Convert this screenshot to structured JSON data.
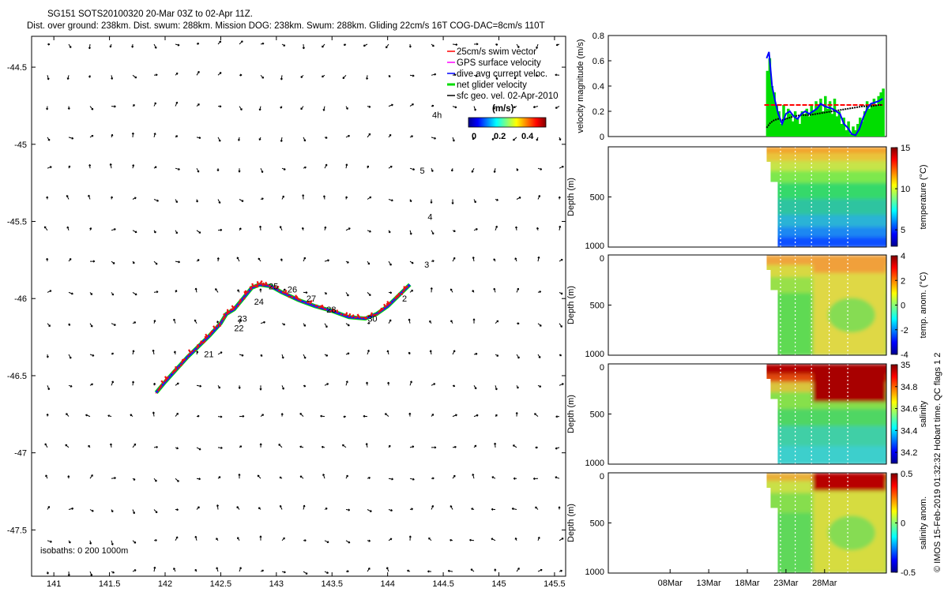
{
  "title": {
    "line1": "SG151 SOTS20100320 20-Mar 03Z to 02-Apr 11Z.",
    "line2": "Dist. over ground: 238km. Dist. swum: 288km. Mission DOG: 238km. Swum: 288km. Gliding 22cm/s 16T COG-DAC=8cm/s 110T"
  },
  "side_note": "© IMOS 15-Feb-2019 01:32:32 Hobart time. QC flags 1  2",
  "colors": {
    "swim": "#ff0000",
    "gps": "#ff00ff",
    "dac": "#0000ff",
    "net": "#00dd00",
    "geo": "#000000",
    "track": "#1a1aff",
    "track_marks": "#ee1111"
  },
  "chart_data": [
    {
      "type": "scatter",
      "name": "map",
      "xlim": [
        140.8,
        145.6
      ],
      "ylim": [
        -47.8,
        -44.3
      ],
      "xticks": [
        141,
        141.5,
        142,
        142.5,
        143,
        143.5,
        144,
        144.5,
        145,
        145.5
      ],
      "yticks": [
        -44.5,
        -45,
        -45.5,
        -46,
        -46.5,
        -47,
        -47.5
      ],
      "xtick_labels": [
        "141",
        "141.5",
        "142",
        "142.5",
        "143",
        "143.5",
        "144",
        "144.5",
        "145",
        "145.5"
      ],
      "ytick_labels": [
        "-44.5",
        "-45",
        "-45.5",
        "-46",
        "-46.5",
        "-47",
        "-47.5"
      ],
      "legend": [
        {
          "key": "swim",
          "label": "25cm/s swim vector"
        },
        {
          "key": "gps",
          "label": "GPS surface velocity"
        },
        {
          "key": "dac",
          "label": "dive avg current veloc."
        },
        {
          "key": "net",
          "label": "net glider velocity"
        },
        {
          "key": "geo",
          "label": "sfc geo. vel. 02-Apr-2010"
        }
      ],
      "colorbar": {
        "title": "(m/s)",
        "tick_labels": [
          "0",
          "0.2",
          "0.4"
        ],
        "range": [
          0,
          0.45
        ]
      },
      "isobaths_label": "isobaths: 0   200  1000m",
      "track": [
        [
          141.92,
          -46.61
        ],
        [
          142.0,
          -46.54
        ],
        [
          142.1,
          -46.46
        ],
        [
          142.2,
          -46.38
        ],
        [
          142.3,
          -46.31
        ],
        [
          142.4,
          -46.24
        ],
        [
          142.5,
          -46.16
        ],
        [
          142.55,
          -46.1
        ],
        [
          142.62,
          -46.07
        ],
        [
          142.7,
          -46.0
        ],
        [
          142.78,
          -45.93
        ],
        [
          142.85,
          -45.91
        ],
        [
          142.95,
          -45.92
        ],
        [
          143.05,
          -45.96
        ],
        [
          143.2,
          -46.01
        ],
        [
          143.35,
          -46.05
        ],
        [
          143.5,
          -46.08
        ],
        [
          143.65,
          -46.12
        ],
        [
          143.8,
          -46.13
        ],
        [
          143.9,
          -46.1
        ],
        [
          144.0,
          -46.05
        ],
        [
          144.1,
          -45.98
        ],
        [
          144.2,
          -45.91
        ]
      ],
      "track_labels": [
        {
          "text": "21",
          "x": 142.35,
          "y": -46.38
        },
        {
          "text": "22",
          "x": 142.62,
          "y": -46.21
        },
        {
          "text": "23",
          "x": 142.65,
          "y": -46.15
        },
        {
          "text": "24",
          "x": 142.8,
          "y": -46.04
        },
        {
          "text": "25",
          "x": 142.93,
          "y": -45.94
        },
        {
          "text": "26",
          "x": 143.1,
          "y": -45.96
        },
        {
          "text": "27",
          "x": 143.27,
          "y": -46.02
        },
        {
          "text": "28",
          "x": 143.45,
          "y": -46.09
        },
        {
          "text": "30",
          "x": 143.82,
          "y": -46.15
        },
        {
          "text": "2",
          "x": 144.13,
          "y": -46.02
        },
        {
          "text": "3",
          "x": 144.33,
          "y": -45.8
        },
        {
          "text": "4",
          "x": 144.36,
          "y": -45.49
        },
        {
          "text": "5",
          "x": 144.29,
          "y": -45.19
        },
        {
          "text": "4h",
          "x": 144.4,
          "y": -44.83
        }
      ]
    },
    {
      "type": "line",
      "name": "velocity",
      "ylabel": "velocity magnitude (m/s)",
      "ylim": [
        0,
        0.8
      ],
      "yticks": [
        0,
        0.2,
        0.4,
        0.6,
        0.8
      ],
      "ytick_labels": [
        "0",
        "0.2",
        "0.4",
        "0.6",
        "0.8"
      ],
      "xlim": [
        0,
        36
      ],
      "swim_line": {
        "value": 0.25,
        "from_day": 20.2,
        "to_day": 35.5
      },
      "dac": [
        [
          20.5,
          0.62
        ],
        [
          20.8,
          0.67
        ],
        [
          21.2,
          0.4
        ],
        [
          21.6,
          0.28
        ],
        [
          22.0,
          0.18
        ],
        [
          22.5,
          0.1
        ],
        [
          23.0,
          0.18
        ],
        [
          23.5,
          0.2
        ],
        [
          24.0,
          0.16
        ],
        [
          24.5,
          0.14
        ],
        [
          25.0,
          0.18
        ],
        [
          25.5,
          0.2
        ],
        [
          26.0,
          0.18
        ],
        [
          26.5,
          0.2
        ],
        [
          27.0,
          0.22
        ],
        [
          27.5,
          0.26
        ],
        [
          28.0,
          0.24
        ],
        [
          28.5,
          0.23
        ],
        [
          29.0,
          0.22
        ],
        [
          29.5,
          0.2
        ],
        [
          30.0,
          0.18
        ],
        [
          30.5,
          0.1
        ],
        [
          31.0,
          0.07
        ],
        [
          31.5,
          0.02
        ],
        [
          32.0,
          0.01
        ],
        [
          32.5,
          0.06
        ],
        [
          33.0,
          0.15
        ],
        [
          33.5,
          0.22
        ],
        [
          34.0,
          0.26
        ],
        [
          34.5,
          0.27
        ],
        [
          35.0,
          0.28
        ],
        [
          35.5,
          0.3
        ]
      ],
      "net": [
        [
          20.6,
          0.52
        ],
        [
          20.9,
          0.62
        ],
        [
          21.2,
          0.4
        ],
        [
          21.5,
          0.35
        ],
        [
          21.8,
          0.25
        ],
        [
          22.1,
          0.2
        ],
        [
          22.4,
          0.1
        ],
        [
          22.7,
          0.25
        ],
        [
          23.0,
          0.15
        ],
        [
          23.3,
          0.22
        ],
        [
          23.6,
          0.18
        ],
        [
          23.9,
          0.12
        ],
        [
          24.2,
          0.2
        ],
        [
          24.5,
          0.15
        ],
        [
          24.8,
          0.1
        ],
        [
          25.1,
          0.2
        ],
        [
          25.4,
          0.18
        ],
        [
          25.7,
          0.22
        ],
        [
          26.0,
          0.16
        ],
        [
          26.3,
          0.25
        ],
        [
          26.6,
          0.2
        ],
        [
          26.9,
          0.28
        ],
        [
          27.2,
          0.24
        ],
        [
          27.5,
          0.3
        ],
        [
          27.8,
          0.2
        ],
        [
          28.1,
          0.32
        ],
        [
          28.4,
          0.22
        ],
        [
          28.7,
          0.28
        ],
        [
          29.0,
          0.18
        ],
        [
          29.3,
          0.3
        ],
        [
          29.6,
          0.16
        ],
        [
          29.9,
          0.2
        ],
        [
          30.2,
          0.1
        ],
        [
          30.5,
          0.15
        ],
        [
          30.8,
          0.05
        ],
        [
          31.1,
          0.12
        ],
        [
          31.4,
          0.02
        ],
        [
          31.7,
          0.08
        ],
        [
          32.0,
          0.05
        ],
        [
          32.3,
          0.1
        ],
        [
          32.6,
          0.15
        ],
        [
          32.9,
          0.12
        ],
        [
          33.2,
          0.2
        ],
        [
          33.5,
          0.28
        ],
        [
          33.8,
          0.22
        ],
        [
          34.1,
          0.26
        ],
        [
          34.4,
          0.3
        ],
        [
          34.7,
          0.25
        ],
        [
          35.0,
          0.32
        ],
        [
          35.3,
          0.35
        ],
        [
          35.6,
          0.38
        ]
      ],
      "geo": [
        [
          20.5,
          0.07
        ],
        [
          21.0,
          0.11
        ],
        [
          21.5,
          0.13
        ],
        [
          22.0,
          0.14
        ],
        [
          22.5,
          0.13
        ],
        [
          23.0,
          0.14
        ],
        [
          23.5,
          0.15
        ],
        [
          24.0,
          0.16
        ],
        [
          25.0,
          0.17
        ],
        [
          26.0,
          0.17
        ],
        [
          27.0,
          0.18
        ],
        [
          28.0,
          0.19
        ],
        [
          29.0,
          0.2
        ],
        [
          30.0,
          0.21
        ],
        [
          31.0,
          0.22
        ],
        [
          32.0,
          0.23
        ],
        [
          33.0,
          0.24
        ],
        [
          34.0,
          0.24
        ],
        [
          35.0,
          0.25
        ],
        [
          35.5,
          0.25
        ]
      ]
    },
    {
      "type": "heatmap",
      "name": "temperature",
      "ylabel": "Depth (m)",
      "cbar_label": "temperature (°C)",
      "clim": [
        3,
        15
      ],
      "cbar_ticks": [
        5,
        10,
        15
      ],
      "cbar_tick_labels": [
        "5",
        "10",
        "15"
      ],
      "yticks": [
        0,
        500,
        1000
      ],
      "ytick_labels": [
        "",
        "500",
        "1000"
      ]
    },
    {
      "type": "heatmap",
      "name": "temp-anom",
      "ylabel": "Depth (m)",
      "cbar_label": "temp. anom. (°C)",
      "clim": [
        -4,
        4
      ],
      "cbar_ticks": [
        4,
        2,
        0,
        -2,
        -4
      ],
      "cbar_tick_labels": [
        "4",
        "2",
        "0",
        "-2",
        "-4"
      ],
      "yticks": [
        0,
        500,
        1000
      ],
      "ytick_labels": [
        "0",
        "500",
        "1000"
      ]
    },
    {
      "type": "heatmap",
      "name": "salinity",
      "ylabel": "Depth (m)",
      "cbar_label": "salinity",
      "clim": [
        34.1,
        35.0
      ],
      "cbar_ticks": [
        35,
        34.8,
        34.6,
        34.4,
        34.2
      ],
      "cbar_tick_labels": [
        "35",
        "34.8",
        "34.6",
        "34.4",
        "34.2"
      ],
      "yticks": [
        0,
        500,
        1000
      ],
      "ytick_labels": [
        "0",
        "500",
        "1000"
      ]
    },
    {
      "type": "heatmap",
      "name": "salinity-anom",
      "ylabel": "Depth (m)",
      "cbar_label": "salinity anom.",
      "clim": [
        -0.5,
        0.5
      ],
      "cbar_ticks": [
        0.5,
        0,
        -0.5
      ],
      "cbar_tick_labels": [
        "0.5",
        "0",
        "-0.5"
      ],
      "yticks": [
        0,
        500,
        1000
      ],
      "ytick_labels": [
        "0",
        "500",
        "1000"
      ],
      "xticks": [
        8,
        13,
        18,
        23,
        28
      ],
      "xtick_labels": [
        "08Mar",
        "13Mar",
        "18Mar",
        "23Mar",
        "28Mar"
      ]
    }
  ]
}
